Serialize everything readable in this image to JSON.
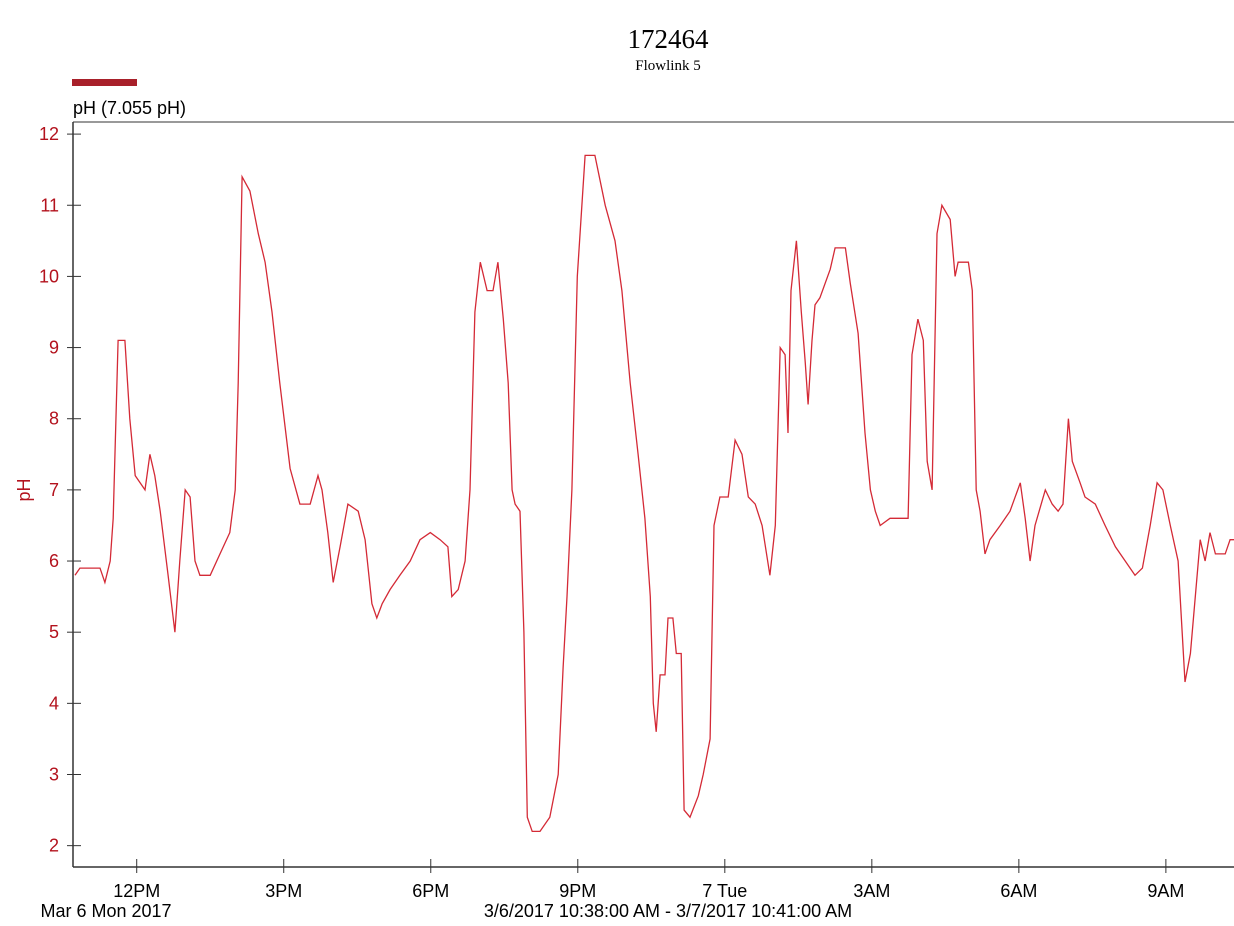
{
  "chart_data": {
    "type": "line",
    "title": "172464",
    "subtitle": "Flowlink 5",
    "y_label": "pH",
    "x_label": "3/6/2017 10:38:00 AM - 3/7/2017 10:41:00 AM",
    "x_date_label": "Mar 6 Mon 2017",
    "axis_color": "#b3121d",
    "xlim": [
      10.7,
      34.39
    ],
    "xticks": [
      {
        "value": 12,
        "label": "12PM"
      },
      {
        "value": 15,
        "label": "3PM"
      },
      {
        "value": 18,
        "label": "6PM"
      },
      {
        "value": 21,
        "label": "9PM"
      },
      {
        "value": 24,
        "label": "7 Tue"
      },
      {
        "value": 27,
        "label": "3AM"
      },
      {
        "value": 30,
        "label": "6AM"
      },
      {
        "value": 33,
        "label": "9AM"
      }
    ],
    "ylim": [
      1.7,
      12.17
    ],
    "yticks": [
      2,
      3,
      4,
      5,
      6,
      7,
      8,
      9,
      10,
      11,
      12
    ],
    "grid": false,
    "legend": "top-left",
    "x": [
      10.74,
      10.84,
      11.25,
      11.35,
      11.46,
      11.52,
      11.62,
      11.76,
      11.86,
      11.97,
      12.17,
      12.27,
      12.37,
      12.48,
      12.64,
      12.78,
      12.88,
      12.99,
      13.09,
      13.19,
      13.29,
      13.5,
      13.7,
      13.9,
      14.01,
      14.07,
      14.15,
      14.31,
      14.48,
      14.62,
      14.76,
      14.92,
      15.13,
      15.33,
      15.54,
      15.7,
      15.78,
      15.9,
      16.01,
      16.15,
      16.31,
      16.52,
      16.66,
      16.8,
      16.9,
      17.01,
      17.17,
      17.37,
      17.58,
      17.78,
      17.99,
      18.19,
      18.35,
      18.43,
      18.56,
      18.7,
      18.8,
      18.9,
      19.01,
      19.15,
      19.27,
      19.37,
      19.48,
      19.58,
      19.66,
      19.72,
      19.82,
      19.9,
      19.97,
      20.07,
      20.23,
      20.43,
      20.6,
      20.7,
      20.78,
      20.88,
      20.99,
      21.15,
      21.35,
      21.56,
      21.76,
      21.9,
      22.07,
      22.23,
      22.37,
      22.48,
      22.54,
      22.6,
      22.68,
      22.78,
      22.84,
      22.94,
      23.01,
      23.11,
      23.17,
      23.29,
      23.46,
      23.56,
      23.7,
      23.78,
      23.9,
      24.07,
      24.21,
      24.35,
      24.48,
      24.62,
      24.76,
      24.92,
      25.03,
      25.13,
      25.23,
      25.29,
      25.35,
      25.46,
      25.56,
      25.64,
      25.7,
      25.78,
      25.84,
      25.94,
      26.15,
      26.25,
      26.46,
      26.56,
      26.72,
      26.86,
      26.97,
      27.07,
      27.17,
      27.37,
      27.58,
      27.74,
      27.82,
      27.94,
      28.05,
      28.13,
      28.23,
      28.33,
      28.43,
      28.6,
      28.7,
      28.76,
      28.97,
      29.05,
      29.13,
      29.21,
      29.31,
      29.41,
      29.62,
      29.82,
      30.03,
      30.13,
      30.23,
      30.33,
      30.54,
      30.68,
      30.8,
      30.9,
      31.01,
      31.09,
      31.25,
      31.35,
      31.56,
      31.76,
      31.97,
      32.17,
      32.37,
      32.52,
      32.68,
      32.82,
      32.94,
      33.09,
      33.25,
      33.39,
      33.5,
      33.6,
      33.7,
      33.8,
      33.9,
      34.01,
      34.21,
      34.31,
      34.39
    ],
    "series": [
      {
        "name": "pH (7.055 pH)",
        "color": "#d42a36",
        "values": [
          5.8,
          5.9,
          5.9,
          5.7,
          6.0,
          6.6,
          9.1,
          9.1,
          8.0,
          7.2,
          7.0,
          7.5,
          7.2,
          6.7,
          5.8,
          5.0,
          6.0,
          7.0,
          6.9,
          6.0,
          5.8,
          5.8,
          6.1,
          6.4,
          7.0,
          8.5,
          11.4,
          11.2,
          10.6,
          10.2,
          9.5,
          8.5,
          7.3,
          6.8,
          6.8,
          7.2,
          7.0,
          6.4,
          5.7,
          6.2,
          6.8,
          6.7,
          6.3,
          5.4,
          5.2,
          5.4,
          5.6,
          5.8,
          6.0,
          6.3,
          6.4,
          6.3,
          6.2,
          5.5,
          5.6,
          6.0,
          7.0,
          9.5,
          10.2,
          9.8,
          9.8,
          10.2,
          9.4,
          8.5,
          7.0,
          6.8,
          6.7,
          5.0,
          2.4,
          2.2,
          2.2,
          2.4,
          3.0,
          4.5,
          5.5,
          7.0,
          10.0,
          11.7,
          11.7,
          11.0,
          10.5,
          9.8,
          8.5,
          7.5,
          6.6,
          5.5,
          4.0,
          3.6,
          4.4,
          4.4,
          5.2,
          5.2,
          4.7,
          4.7,
          2.5,
          2.4,
          2.7,
          3.0,
          3.5,
          6.5,
          6.9,
          6.9,
          7.7,
          7.5,
          6.9,
          6.8,
          6.5,
          5.8,
          6.5,
          9.0,
          8.9,
          7.8,
          9.8,
          10.5,
          9.5,
          8.8,
          8.2,
          9.1,
          9.6,
          9.7,
          10.1,
          10.4,
          10.4,
          9.9,
          9.2,
          7.8,
          7.0,
          6.7,
          6.5,
          6.6,
          6.6,
          6.6,
          8.9,
          9.4,
          9.1,
          7.4,
          7.0,
          10.6,
          11.0,
          10.8,
          10.0,
          10.2,
          10.2,
          9.8,
          7.0,
          6.7,
          6.1,
          6.3,
          6.5,
          6.7,
          7.1,
          6.6,
          6.0,
          6.5,
          7.0,
          6.8,
          6.7,
          6.8,
          8.0,
          7.4,
          7.1,
          6.9,
          6.8,
          6.5,
          6.2,
          6.0,
          5.8,
          5.9,
          6.5,
          7.1,
          7.0,
          6.5,
          6.0,
          4.3,
          4.7,
          5.5,
          6.3,
          6.0,
          6.4,
          6.1,
          6.1,
          6.3,
          6.3
        ]
      }
    ]
  }
}
